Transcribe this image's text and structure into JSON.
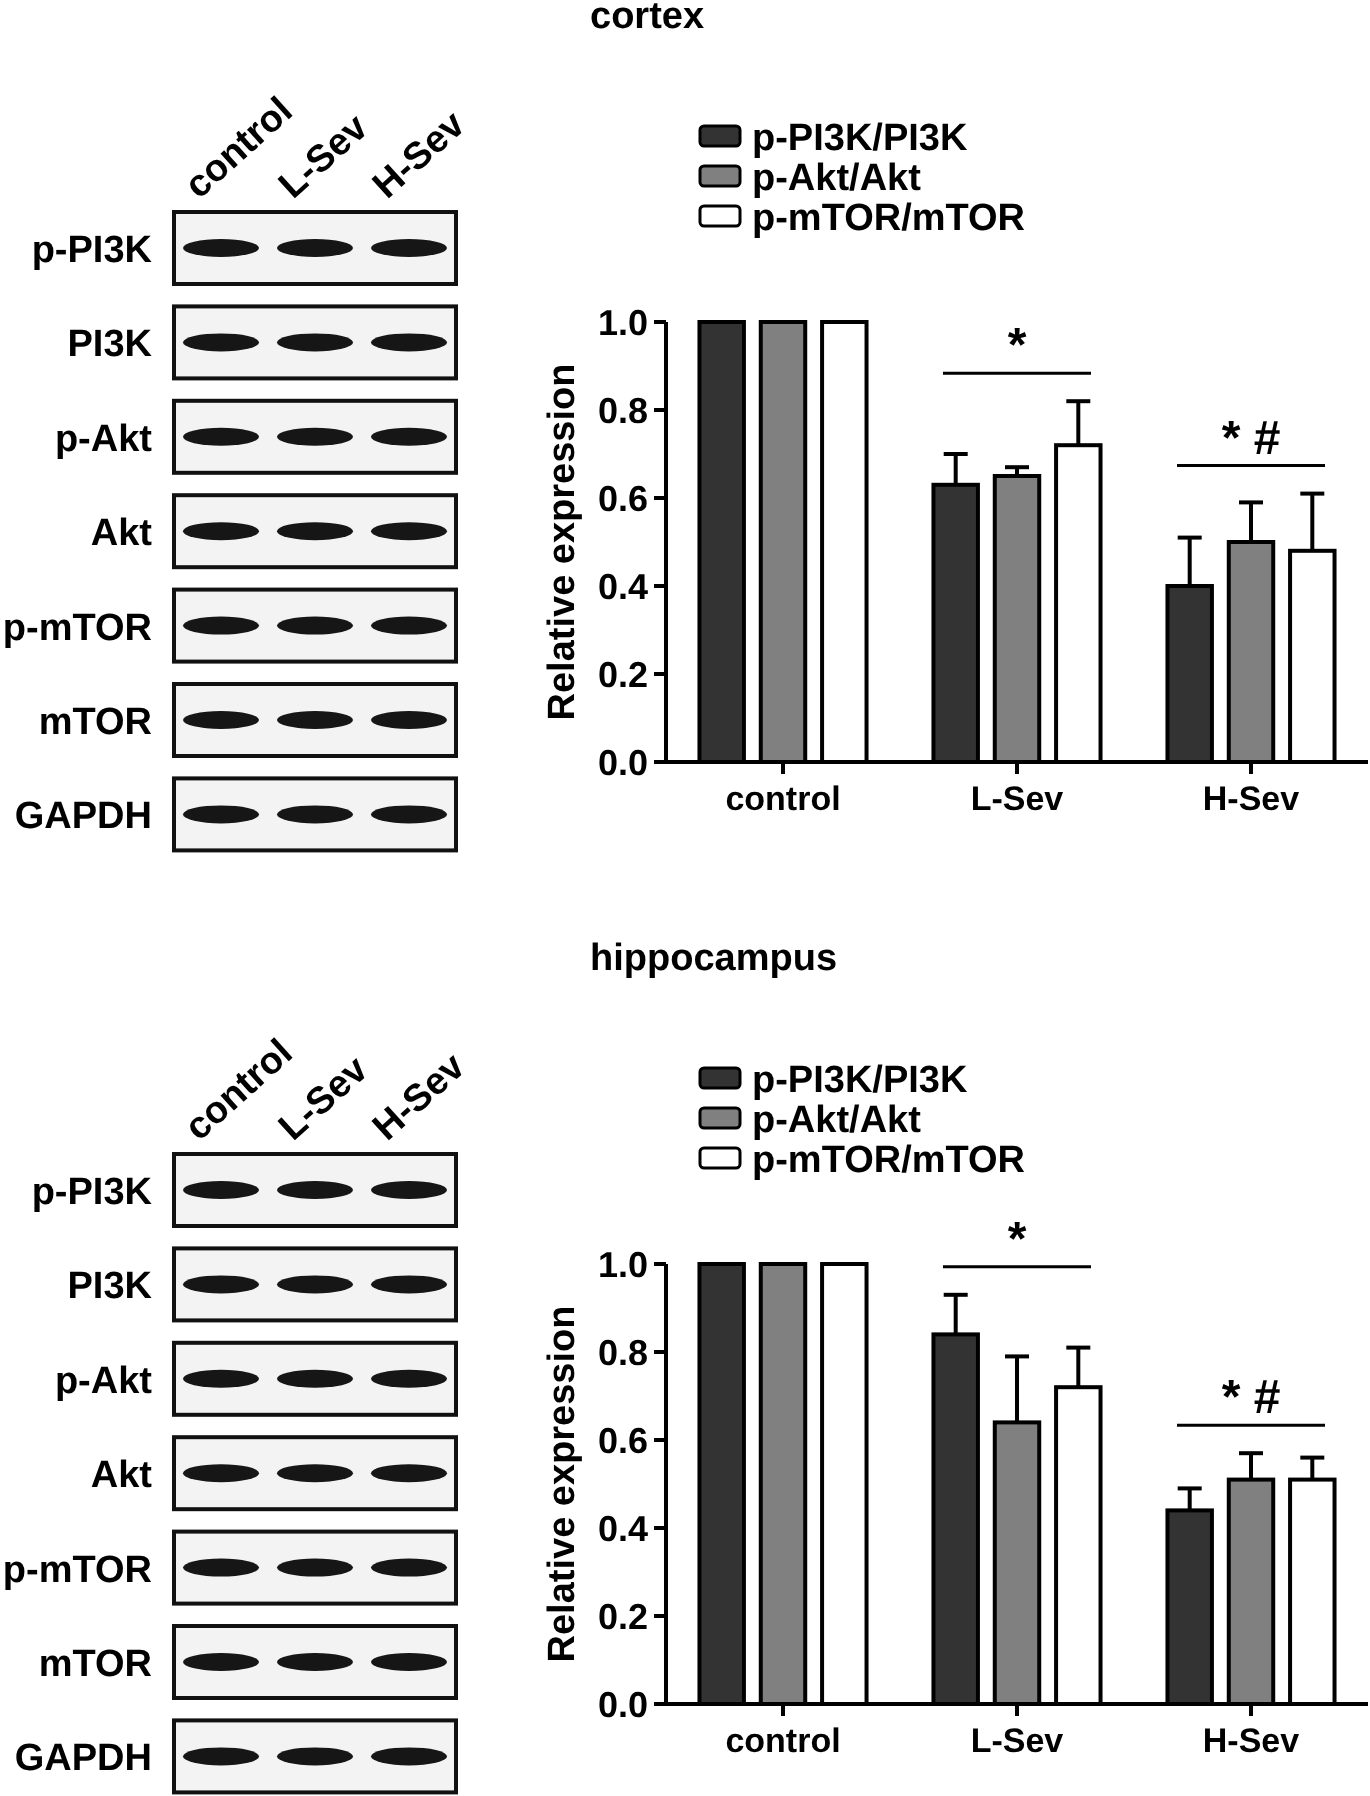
{
  "chart_data": [
    {
      "type": "other",
      "categories": [
        "control",
        "L-Sev",
        "H-Sev"
      ],
      "y_categories": [
        "p-PI3K",
        "PI3K",
        "p-Akt",
        "Akt",
        "p-mTOR",
        "mTOR",
        "GAPDH"
      ]
    },
    {
      "type": "bar",
      "title": "cortex",
      "ylabel": "Relative expression",
      "categories": [
        "control",
        "L-Sev",
        "H-Sev"
      ],
      "series": [
        {
          "name": "p-PI3K/PI3K",
          "color": "#333333",
          "values": [
            1.0,
            0.63,
            0.4
          ],
          "errors": [
            null,
            [
              0.63,
              0.7
            ],
            [
              0.4,
              0.51
            ]
          ]
        },
        {
          "name": "p-Akt/Akt",
          "color": "#808080",
          "values": [
            1.0,
            0.65,
            0.5
          ],
          "errors": [
            null,
            [
              0.65,
              0.67
            ],
            [
              0.5,
              0.59
            ]
          ]
        },
        {
          "name": "p-mTOR/mTOR",
          "color": "#ffffff",
          "values": [
            1.0,
            0.72,
            0.48
          ],
          "errors": [
            null,
            [
              0.72,
              0.82
            ],
            [
              0.48,
              0.61
            ]
          ]
        }
      ],
      "ylim": [
        0,
        1
      ],
      "yticks": [
        {
          "value": 0,
          "label": "0.0"
        },
        {
          "value": 0.2,
          "label": "0.2"
        },
        {
          "value": 0.4,
          "label": "0.4"
        },
        {
          "value": 0.6,
          "label": "0.6"
        },
        {
          "value": 0.8,
          "label": "0.8"
        },
        {
          "value": 1,
          "label": "1.0"
        }
      ],
      "legend": "top left",
      "annotations": [
        "*",
        "* #"
      ]
    },
    {
      "type": "other",
      "categories": [
        "control",
        "L-Sev",
        "H-Sev"
      ],
      "y_categories": [
        "p-PI3K",
        "PI3K",
        "p-Akt",
        "Akt",
        "p-mTOR",
        "mTOR",
        "GAPDH"
      ]
    },
    {
      "type": "bar",
      "title": "hippocampus",
      "ylabel": "Relative expression",
      "categories": [
        "control",
        "L-Sev",
        "H-Sev"
      ],
      "series": [
        {
          "name": "p-PI3K/PI3K",
          "color": "#333333",
          "values": [
            1.0,
            0.84,
            0.44
          ],
          "errors": [
            null,
            [
              0.84,
              0.93
            ],
            [
              0.44,
              0.49
            ]
          ]
        },
        {
          "name": "p-Akt/Akt",
          "color": "#808080",
          "values": [
            1.0,
            0.64,
            0.51
          ],
          "errors": [
            null,
            [
              0.64,
              0.79
            ],
            [
              0.51,
              0.57
            ]
          ]
        },
        {
          "name": "p-mTOR/mTOR",
          "color": "#ffffff",
          "values": [
            1.0,
            0.72,
            0.51
          ],
          "errors": [
            null,
            [
              0.72,
              0.81
            ],
            [
              0.51,
              0.56
            ]
          ]
        }
      ],
      "ylim": [
        0,
        1
      ],
      "yticks": [
        {
          "value": 0,
          "label": "0.0"
        },
        {
          "value": 0.2,
          "label": "0.2"
        },
        {
          "value": 0.4,
          "label": "0.4"
        },
        {
          "value": 0.6,
          "label": "0.6"
        },
        {
          "value": 0.8,
          "label": "0.8"
        },
        {
          "value": 1,
          "label": "1.0"
        }
      ],
      "legend": "top left",
      "annotations": [
        "*",
        "* #"
      ]
    }
  ]
}
